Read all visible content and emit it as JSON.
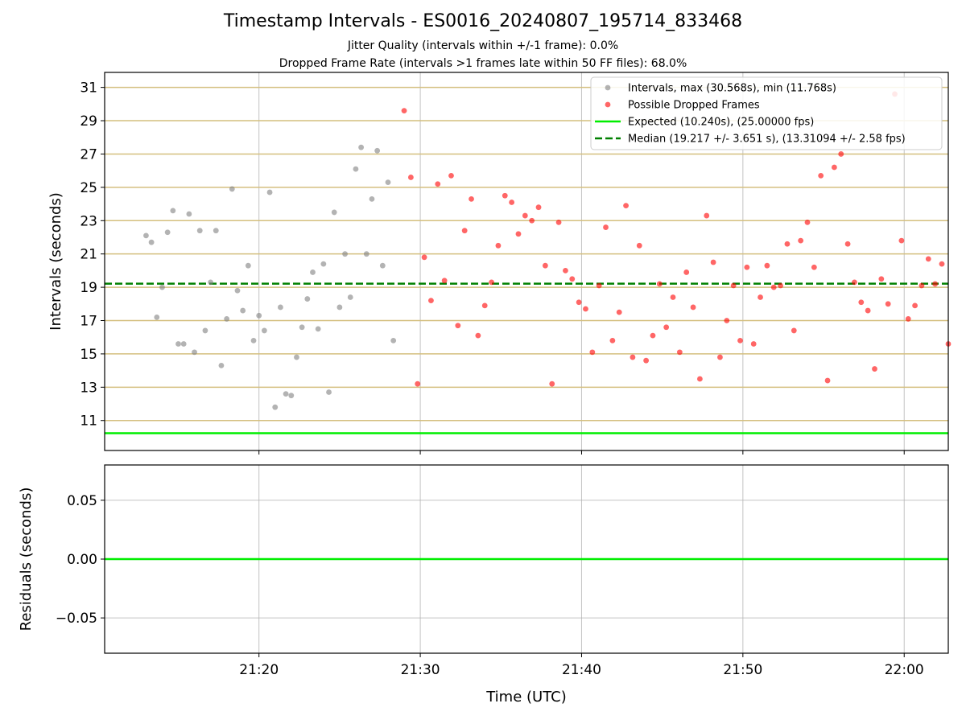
{
  "title": "Timestamp Intervals - ES0016_20240807_195714_833468",
  "subtitle_1": "Jitter Quality (intervals within +/-1 frame): 0.0%",
  "subtitle_2": "Dropped Frame Rate (intervals >1 frames late within 50 FF files): 68.0%",
  "colors": {
    "grid": "#b0b0b0",
    "hline": "#d4bf7f",
    "intervals": "#808080",
    "dropped": "#ff0000",
    "expected": "#00ee00",
    "median": "#008000"
  },
  "chart_data": [
    {
      "type": "scatter",
      "panel": "intervals",
      "xlabel": "",
      "ylabel": "Intervals (seconds)",
      "x_format": "HH:MM",
      "xlim": [
        "21:10:26",
        "22:02:44"
      ],
      "ylim": [
        9.2,
        31.9
      ],
      "yticks": [
        11,
        13,
        15,
        17,
        19,
        21,
        23,
        25,
        27,
        29,
        31
      ],
      "xticks": [
        "21:20",
        "21:30",
        "21:40",
        "21:50",
        "22:00"
      ],
      "grid": true,
      "legend_position": "top-right",
      "legend": [
        "Intervals, max (30.568s), min (11.768s)",
        "Possible Dropped Frames",
        "Expected (10.240s), (25.00000 fps)",
        "Median (19.217 +/- 3.651 s), (13.31094 +/- 2.58 fps)"
      ],
      "hlines": [
        {
          "name": "Expected (10.240s), (25.00000 fps)",
          "y": 10.24,
          "style": "solid"
        },
        {
          "name": "Median (19.217 +/- 3.651 s), (13.31094 +/- 2.58 fps)",
          "y": 19.217,
          "style": "dashed"
        }
      ],
      "series": [
        {
          "name": "Intervals, max (30.568s), min (11.768s)",
          "x": [
            "21:13:00",
            "21:13:20",
            "21:13:40",
            "21:14:00",
            "21:14:20",
            "21:14:40",
            "21:15:00",
            "21:15:20",
            "21:15:40",
            "21:16:00",
            "21:16:20",
            "21:16:40",
            "21:17:00",
            "21:17:20",
            "21:17:40",
            "21:18:00",
            "21:18:20",
            "21:18:40",
            "21:19:00",
            "21:19:20",
            "21:19:40",
            "21:20:00",
            "21:20:20",
            "21:20:40",
            "21:21:00",
            "21:21:20",
            "21:21:40",
            "21:22:00",
            "21:22:20",
            "21:22:40",
            "21:23:00",
            "21:23:20",
            "21:23:40",
            "21:24:00",
            "21:24:20",
            "21:24:40",
            "21:25:00",
            "21:25:20",
            "21:25:40",
            "21:26:00",
            "21:26:20",
            "21:26:40",
            "21:27:00",
            "21:27:20",
            "21:27:40",
            "21:28:00",
            "21:28:20"
          ],
          "y": [
            22.1,
            21.7,
            17.2,
            19.0,
            22.3,
            23.6,
            15.6,
            15.6,
            23.4,
            15.1,
            22.4,
            16.4,
            19.3,
            22.4,
            14.3,
            17.1,
            24.9,
            18.8,
            17.6,
            20.3,
            15.8,
            17.3,
            16.4,
            24.7,
            11.8,
            17.8,
            12.6,
            12.5,
            14.8,
            16.6,
            18.3,
            19.9,
            16.5,
            20.4,
            12.7,
            23.5,
            17.8,
            21.0,
            18.4,
            26.1,
            27.4,
            21.0,
            24.3,
            27.2,
            20.3,
            25.3,
            15.8
          ]
        },
        {
          "name": "Possible Dropped Frames",
          "x": [
            "21:29:00",
            "21:29:25",
            "21:29:50",
            "21:30:15",
            "21:30:40",
            "21:31:05",
            "21:31:30",
            "21:31:55",
            "21:32:20",
            "21:32:45",
            "21:33:10",
            "21:33:35",
            "21:34:00",
            "21:34:25",
            "21:34:50",
            "21:35:15",
            "21:35:40",
            "21:36:05",
            "21:36:30",
            "21:36:55",
            "21:37:20",
            "21:37:45",
            "21:38:10",
            "21:38:35",
            "21:39:00",
            "21:39:25",
            "21:39:50",
            "21:40:15",
            "21:40:40",
            "21:41:05",
            "21:41:30",
            "21:41:55",
            "21:42:20",
            "21:42:45",
            "21:43:10",
            "21:43:35",
            "21:44:00",
            "21:44:25",
            "21:44:50",
            "21:45:15",
            "21:45:40",
            "21:46:05",
            "21:46:30",
            "21:46:55",
            "21:47:20",
            "21:47:45",
            "21:48:10",
            "21:48:35",
            "21:49:00",
            "21:49:25",
            "21:49:50",
            "21:50:15",
            "21:50:40",
            "21:51:05",
            "21:51:30",
            "21:51:55",
            "21:52:20",
            "21:52:45",
            "21:53:10",
            "21:53:35",
            "21:54:00",
            "21:54:25",
            "21:54:50",
            "21:55:15",
            "21:55:40",
            "21:56:05",
            "21:56:30",
            "21:56:55",
            "21:57:20",
            "21:57:45",
            "21:58:10",
            "21:58:35",
            "21:59:00",
            "21:59:25",
            "21:59:50",
            "22:00:15",
            "22:00:40",
            "22:01:05",
            "22:01:30",
            "22:01:55",
            "22:02:20",
            "22:02:44"
          ],
          "y": [
            29.6,
            25.6,
            13.2,
            20.8,
            18.2,
            25.2,
            19.4,
            25.7,
            16.7,
            22.4,
            24.3,
            16.1,
            17.9,
            19.3,
            21.5,
            24.5,
            24.1,
            22.2,
            23.3,
            23.0,
            23.8,
            20.3,
            13.2,
            22.9,
            20.0,
            19.5,
            18.1,
            17.7,
            15.1,
            19.1,
            22.6,
            15.8,
            17.5,
            23.9,
            14.8,
            21.5,
            14.6,
            16.1,
            19.2,
            16.6,
            18.4,
            15.1,
            19.9,
            17.8,
            13.5,
            23.3,
            20.5,
            14.8,
            17.0,
            19.1,
            15.8,
            20.2,
            15.6,
            18.4,
            20.3,
            19.0,
            19.1,
            21.6,
            16.4,
            21.8,
            22.9,
            20.2,
            25.7,
            13.4,
            26.2,
            27.0,
            21.6,
            19.3,
            18.1,
            17.6,
            14.1,
            19.5,
            18.0,
            30.6,
            21.8,
            17.1,
            17.9,
            19.1,
            20.7,
            19.2,
            20.4,
            15.6
          ]
        }
      ]
    },
    {
      "type": "line",
      "panel": "residuals",
      "xlabel": "Time (UTC)",
      "ylabel": "Residuals (seconds)",
      "ylim": [
        -0.08,
        0.08
      ],
      "yticks": [
        0.05,
        0.0,
        -0.05
      ],
      "ytick_labels": [
        "0.05",
        "0.00",
        "−0.05"
      ],
      "xticks": [
        "21:20",
        "21:30",
        "21:40",
        "21:50",
        "22:00"
      ],
      "grid": true,
      "series": [
        {
          "value": 0.0
        }
      ]
    }
  ]
}
